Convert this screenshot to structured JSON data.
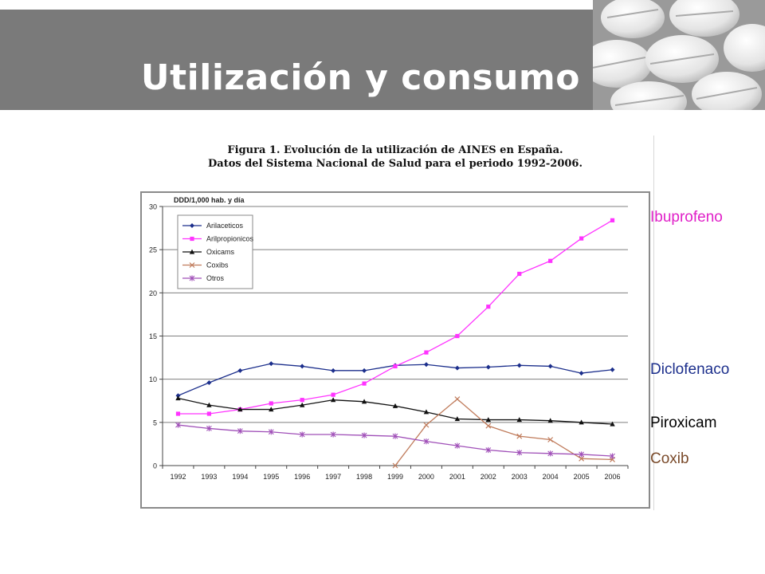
{
  "slide": {
    "title": "Utilización y consumo",
    "figure_caption_line1": "Figura 1. Evolución de la utilización de AINES en España.",
    "figure_caption_line2": "Datos del Sistema Nacional de Salud para el periodo 1992-2006.",
    "side_labels": [
      {
        "text": "Ibuprofeno",
        "color": "#e020c8"
      },
      {
        "text": "Diclofenaco",
        "color": "#1c2f8c"
      },
      {
        "text": "Piroxicam",
        "color": "#000000"
      },
      {
        "text": "Coxib",
        "color": "#7a4a2a"
      }
    ]
  },
  "chart_data": {
    "type": "line",
    "ylabel": "DDD/1,000 hab. y día",
    "xlabel": "",
    "ylim": [
      0,
      30
    ],
    "yticks": [
      0,
      5,
      10,
      15,
      20,
      25,
      30
    ],
    "grid": true,
    "legend_position": "top-left",
    "categories": [
      "1992",
      "1993",
      "1994",
      "1995",
      "1996",
      "1997",
      "1998",
      "1999",
      "2000",
      "2001",
      "2002",
      "2003",
      "2004",
      "2005",
      "2006"
    ],
    "series": [
      {
        "name": "Arilaceticos",
        "color": "#1c2f8c",
        "marker": "diamond",
        "values": [
          8.1,
          9.6,
          11.0,
          11.8,
          11.5,
          11.0,
          11.0,
          11.6,
          11.7,
          11.3,
          11.4,
          11.6,
          11.5,
          10.7,
          11.1
        ]
      },
      {
        "name": "Arilpropionicos",
        "color": "#ff33ff",
        "marker": "square",
        "values": [
          6.0,
          6.0,
          6.5,
          7.2,
          7.6,
          8.2,
          9.5,
          11.5,
          13.1,
          15.0,
          18.4,
          22.2,
          23.7,
          26.3,
          28.4
        ]
      },
      {
        "name": "Oxicams",
        "color": "#111111",
        "marker": "triangle",
        "values": [
          7.8,
          7.0,
          6.5,
          6.5,
          7.0,
          7.6,
          7.4,
          6.9,
          6.2,
          5.4,
          5.3,
          5.3,
          5.2,
          5.0,
          4.8
        ]
      },
      {
        "name": "Coxibs",
        "color": "#c07c5c",
        "marker": "x",
        "values": [
          null,
          null,
          null,
          null,
          null,
          null,
          null,
          0.0,
          4.7,
          7.7,
          4.6,
          3.4,
          3.0,
          0.8,
          0.7
        ]
      },
      {
        "name": "Otros",
        "color": "#a050b8",
        "marker": "star",
        "values": [
          4.7,
          4.3,
          4.0,
          3.9,
          3.6,
          3.6,
          3.5,
          3.4,
          2.8,
          2.3,
          1.8,
          1.5,
          1.4,
          1.3,
          1.1
        ]
      }
    ]
  }
}
